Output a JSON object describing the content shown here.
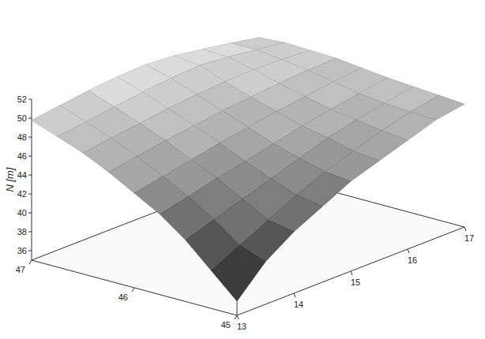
{
  "chart_data": {
    "type": "surface3d",
    "zlabel": "N [m]",
    "x": [
      13,
      13.5,
      14,
      14.5,
      15,
      15.5,
      16,
      16.5,
      17
    ],
    "y": [
      45,
      45.25,
      45.5,
      45.75,
      46,
      46.25,
      46.5,
      46.75,
      47
    ],
    "values": [
      [
        36.5,
        39.5,
        41.5,
        43.0,
        44.5,
        45.5,
        46.5,
        47.5,
        48.0
      ],
      [
        39.0,
        40.5,
        42.0,
        43.5,
        44.8,
        45.8,
        46.8,
        47.6,
        48.2
      ],
      [
        41.5,
        42.5,
        43.5,
        44.5,
        45.5,
        46.5,
        47.2,
        47.8,
        48.4
      ],
      [
        43.5,
        44.2,
        45.0,
        45.6,
        46.3,
        47.0,
        47.6,
        48.1,
        48.6
      ],
      [
        45.0,
        45.6,
        46.2,
        46.8,
        47.3,
        47.8,
        48.2,
        48.6,
        48.9
      ],
      [
        46.5,
        47.0,
        47.5,
        47.9,
        48.3,
        48.6,
        48.9,
        49.1,
        49.2
      ],
      [
        47.8,
        48.2,
        48.6,
        49.0,
        49.3,
        49.5,
        49.6,
        49.5,
        49.3
      ],
      [
        48.8,
        49.2,
        49.6,
        50.0,
        50.3,
        50.5,
        50.2,
        49.8,
        49.4
      ],
      [
        49.8,
        50.2,
        50.6,
        50.9,
        51.0,
        50.8,
        50.3,
        49.8,
        49.2
      ]
    ],
    "xlim": [
      13,
      17
    ],
    "xticks": [
      13,
      14,
      15,
      16,
      17
    ],
    "ylim": [
      45,
      47
    ],
    "yticks": [
      45,
      46,
      47
    ],
    "zlim": [
      35,
      52
    ],
    "zticks": [
      36,
      38,
      40,
      42,
      44,
      46,
      48,
      50,
      52
    ]
  }
}
